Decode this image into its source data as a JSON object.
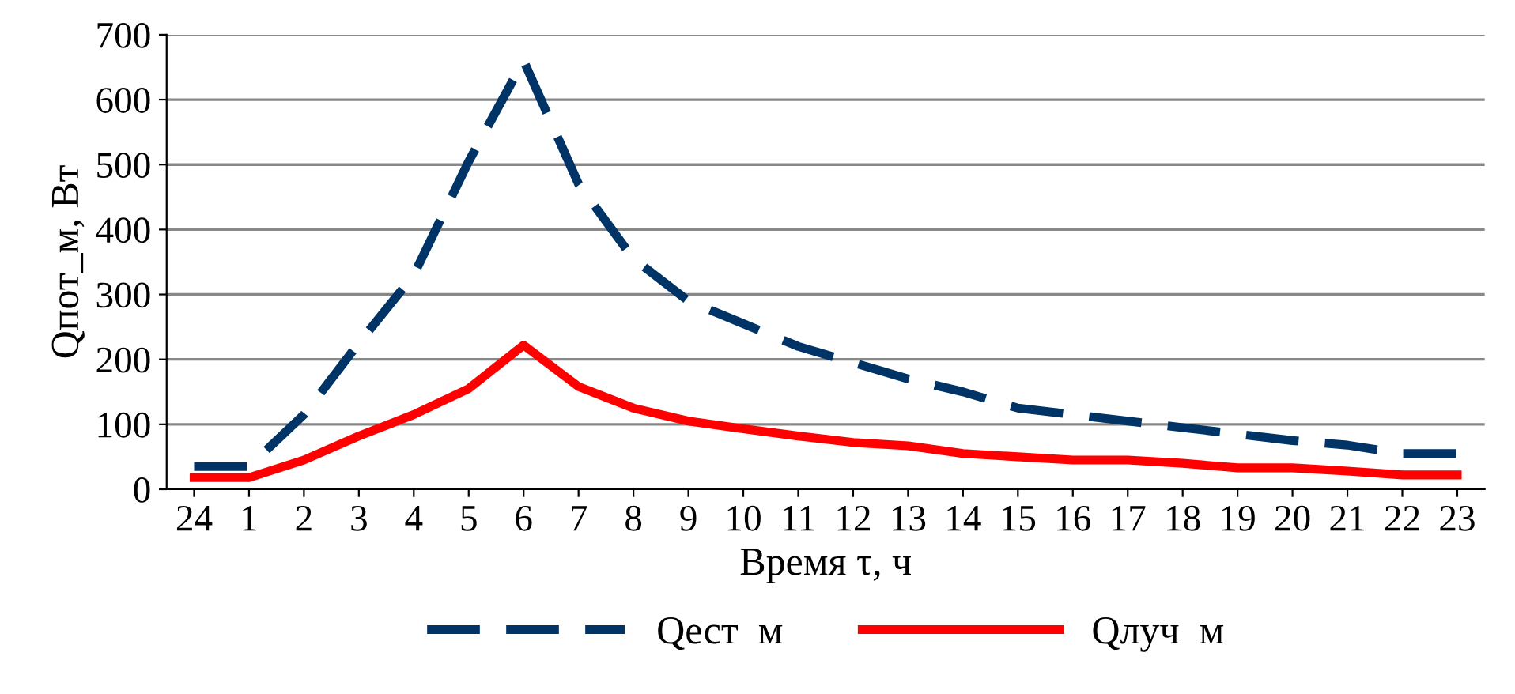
{
  "chart_data": {
    "type": "line",
    "xlabel": "Время τ, ч",
    "ylabel": "Qпот_м, Вт",
    "categories": [
      "24",
      "1",
      "2",
      "3",
      "4",
      "5",
      "6",
      "7",
      "8",
      "9",
      "10",
      "11",
      "12",
      "13",
      "14",
      "15",
      "16",
      "17",
      "18",
      "19",
      "20",
      "21",
      "22",
      "23"
    ],
    "series": [
      {
        "name": "Qест  м",
        "color": "#003366",
        "line_style": "dashed",
        "values": [
          35,
          35,
          115,
          225,
          330,
          505,
          660,
          470,
          355,
          290,
          255,
          220,
          195,
          170,
          150,
          125,
          115,
          105,
          95,
          85,
          75,
          68,
          55,
          55
        ]
      },
      {
        "name": "Qлуч  м",
        "color": "#ff0000",
        "line_style": "solid",
        "values": [
          18,
          18,
          45,
          82,
          115,
          155,
          222,
          158,
          125,
          105,
          93,
          82,
          72,
          67,
          55,
          50,
          45,
          45,
          40,
          33,
          33,
          28,
          22,
          22
        ]
      }
    ],
    "ylim": [
      0,
      700
    ],
    "yticks": [
      0,
      100,
      200,
      300,
      400,
      500,
      600,
      700
    ],
    "grid": "y",
    "legend": "bottom",
    "marker": "none"
  }
}
